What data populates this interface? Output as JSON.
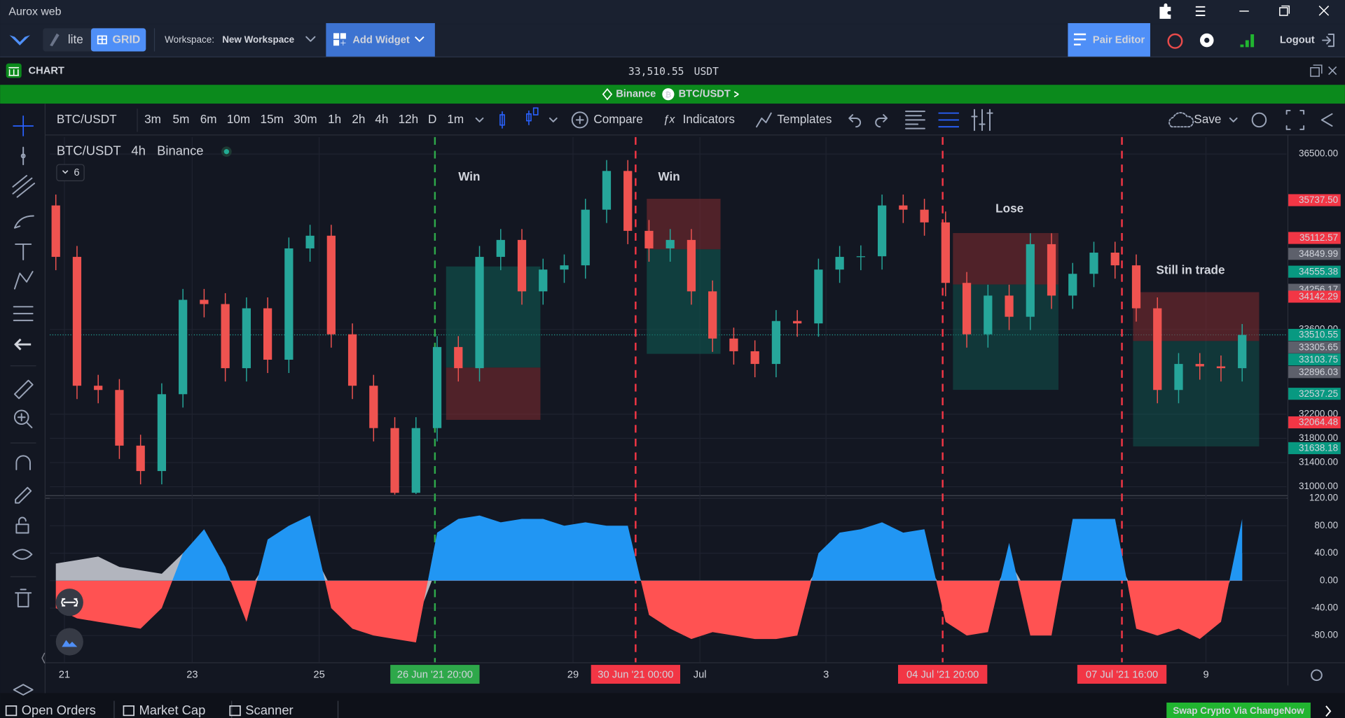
{
  "window": {
    "title": "Aurox web"
  },
  "toolbar": {
    "lite": "lite",
    "grid": "GRID",
    "workspace_label": "Workspace:",
    "workspace": "New Workspace",
    "add_widget": "Add Widget",
    "pair_editor": "Pair Editor",
    "logout": "Logout"
  },
  "panel": {
    "title": "CHART",
    "price": "33,510.55",
    "quote": "USDT"
  },
  "pair_bar": {
    "exchange": "Binance",
    "pair": "BTC/USDT"
  },
  "chart_toolbar": {
    "symbol": "BTC/USDT",
    "intervals": [
      {
        "label": "3m"
      },
      {
        "label": "5m"
      },
      {
        "label": "6m"
      },
      {
        "label": "10m"
      },
      {
        "label": "15m"
      },
      {
        "label": "30m"
      },
      {
        "label": "1h"
      },
      {
        "label": "2h"
      },
      {
        "label": "4h",
        "active": true
      },
      {
        "label": "12h"
      },
      {
        "label": "D"
      },
      {
        "label": "1m"
      }
    ],
    "compare": "Compare",
    "indicators": "Indicators",
    "templates": "Templates",
    "save": "Save"
  },
  "legend": {
    "symbol": "BTC/USDT",
    "interval": "4h",
    "exchange": "Binance",
    "indicator_count": 6
  },
  "chart_data": {
    "type": "candlestick",
    "up_color": "#26a69a",
    "down_color": "#ef5350",
    "ylim": [
      30860,
      36780
    ],
    "yticks": [
      {
        "value": 36500,
        "label": "36500.00"
      },
      {
        "value": 33600,
        "label": "33600.00"
      },
      {
        "value": 32200,
        "label": "32200.00"
      },
      {
        "value": 31800,
        "label": "31800.00"
      },
      {
        "value": 31400,
        "label": "31400.00"
      },
      {
        "value": 31000,
        "label": "31000.00"
      }
    ],
    "price_tags": [
      {
        "value": 35737.5,
        "label": "35737.50",
        "color": "#f23645"
      },
      {
        "value": 35112.57,
        "label": "35112.57",
        "color": "#f23645"
      },
      {
        "value": 34849.99,
        "label": "34849.99",
        "color": "#5d606b"
      },
      {
        "value": 34555.38,
        "label": "34555.38",
        "color": "#089981"
      },
      {
        "value": 34256.17,
        "label": "34256.17",
        "color": "#5d606b"
      },
      {
        "value": 34142.29,
        "label": "34142.29",
        "color": "#f23645"
      },
      {
        "value": 33510.55,
        "label": "33510.55",
        "color": "#089981"
      },
      {
        "value": 33305.65,
        "label": "33305.65",
        "color": "#5d606b"
      },
      {
        "value": 33103.75,
        "label": "33103.75",
        "color": "#089981"
      },
      {
        "value": 32896.03,
        "label": "32896.03",
        "color": "#5d606b"
      },
      {
        "value": 32537.25,
        "label": "32537.25",
        "color": "#089981"
      },
      {
        "value": 32064.48,
        "label": "32064.48",
        "color": "#f23645"
      },
      {
        "value": 31638.18,
        "label": "31638.18",
        "color": "#089981"
      }
    ],
    "open": [
      35650,
      34800,
      32670,
      32600,
      31680,
      31260,
      32530,
      34090,
      34020,
      32960,
      33950,
      33100,
      34940,
      35150,
      33520,
      32670,
      31970,
      30900,
      31970,
      33310,
      32960,
      34800,
      35080,
      34230,
      34590,
      34660,
      35580,
      36220,
      35230,
      34940,
      35080,
      34230,
      33450,
      33240,
      33030,
      33740,
      33700,
      34590,
      34800,
      34810,
      35650,
      35580,
      35370,
      34370,
      33520,
      34160,
      33810,
      35010,
      34160,
      34520,
      34870,
      34660,
      33950,
      32600,
      33030,
      32990,
      32960
    ],
    "high": [
      35830,
      34980,
      32850,
      32780,
      31860,
      32710,
      34270,
      34270,
      34200,
      34130,
      34130,
      35120,
      35330,
      35330,
      33700,
      32850,
      32150,
      32150,
      33490,
      33490,
      34980,
      35260,
      35260,
      34770,
      34840,
      35760,
      36400,
      36400,
      35410,
      35260,
      35260,
      34410,
      33630,
      33420,
      33920,
      33920,
      34770,
      34980,
      34990,
      35830,
      35830,
      35760,
      35550,
      34550,
      34340,
      34340,
      35190,
      35190,
      34700,
      35050,
      35050,
      34840,
      34130,
      33210,
      33210,
      33170,
      33690
    ],
    "low": [
      34580,
      32450,
      32380,
      31460,
      31040,
      31040,
      32310,
      33800,
      32740,
      32740,
      32880,
      32880,
      34720,
      33300,
      32450,
      31750,
      30870,
      30880,
      31750,
      32740,
      32740,
      34580,
      34010,
      34010,
      34370,
      34440,
      35360,
      35010,
      34720,
      34720,
      34010,
      33230,
      33020,
      32810,
      32810,
      33480,
      33480,
      34370,
      34580,
      34590,
      35360,
      35150,
      34150,
      33300,
      33300,
      33590,
      33590,
      33940,
      33940,
      34300,
      34440,
      33730,
      32380,
      32380,
      32770,
      32740,
      32740
    ],
    "close": [
      34800,
      32670,
      32600,
      31680,
      31260,
      32530,
      34090,
      34020,
      32960,
      33950,
      33100,
      34940,
      35150,
      33520,
      32670,
      31970,
      30900,
      31970,
      33310,
      32960,
      34800,
      35080,
      34230,
      34590,
      34660,
      35580,
      36220,
      35230,
      34940,
      35080,
      34230,
      33450,
      33240,
      33030,
      33740,
      33700,
      34590,
      34800,
      34810,
      35650,
      35580,
      35370,
      34370,
      33520,
      34160,
      33810,
      35010,
      34160,
      34520,
      34870,
      34660,
      33950,
      32600,
      33030,
      32990,
      32960,
      33510
    ],
    "x_labels": [
      {
        "label": "21"
      },
      {
        "label": "23"
      },
      {
        "label": "25"
      },
      {
        "label": "26 Jun '21   20:00",
        "color": "#2ea84a"
      },
      {
        "label": "29"
      },
      {
        "label": "30 Jun '21   00:00",
        "color": "#f23645"
      },
      {
        "label": "Jul"
      },
      {
        "label": "3"
      },
      {
        "label": "04 Jul '21   20:00",
        "color": "#f23645"
      },
      {
        "label": "07 Jul '21   16:00",
        "color": "#f23645"
      },
      {
        "label": "9"
      }
    ],
    "annotations": [
      {
        "text": "Win"
      },
      {
        "text": "Win"
      },
      {
        "text": "Lose"
      },
      {
        "text": "Still in trade"
      }
    ],
    "annotation_color": "#f0c419",
    "oscillator": {
      "ylim": [
        -119,
        122
      ],
      "yticks": [
        {
          "value": 120,
          "label": "120.00"
        },
        {
          "value": 80,
          "label": "80.00"
        },
        {
          "value": 40,
          "label": "40.00"
        },
        {
          "value": 0,
          "label": "0.00"
        },
        {
          "value": -40,
          "label": "-40.00"
        },
        {
          "value": -80,
          "label": "-80.00"
        }
      ],
      "positive_color": "#2196f3",
      "negative_color": "#ff5252",
      "signal_color": "#b2b5be",
      "values": [
        -40,
        -55,
        -60,
        -65,
        -70,
        -40,
        40,
        75,
        20,
        -60,
        60,
        80,
        95,
        -40,
        -70,
        -80,
        -85,
        -90,
        70,
        90,
        95,
        85,
        90,
        90,
        80,
        85,
        80,
        80,
        -50,
        -70,
        -85,
        -75,
        -80,
        -85,
        -85,
        -80,
        40,
        70,
        75,
        85,
        70,
        75,
        -60,
        -80,
        -75,
        55,
        -80,
        -80,
        90,
        90,
        90,
        -70,
        -80,
        -70,
        -85,
        -60,
        90
      ],
      "signal": [
        25,
        30,
        35,
        20,
        15,
        10,
        40,
        35,
        5,
        -20,
        30,
        40,
        50,
        -10,
        -30,
        -40,
        -50,
        -60,
        20,
        30,
        25,
        30,
        35,
        40,
        30,
        25,
        30,
        35,
        -20,
        -30,
        -40,
        -35,
        -40,
        -45,
        -40,
        -30,
        20,
        25,
        30,
        35,
        25,
        30,
        -20,
        -30,
        -35,
        30,
        -25,
        -30,
        30,
        35,
        40,
        -25,
        -30,
        -35,
        -40,
        -30,
        40
      ]
    }
  },
  "bottom_bar": {
    "tabs": [
      "Open Orders",
      "Market Cap",
      "Scanner"
    ],
    "swap": "Swap Crypto Via ChangeNow"
  }
}
